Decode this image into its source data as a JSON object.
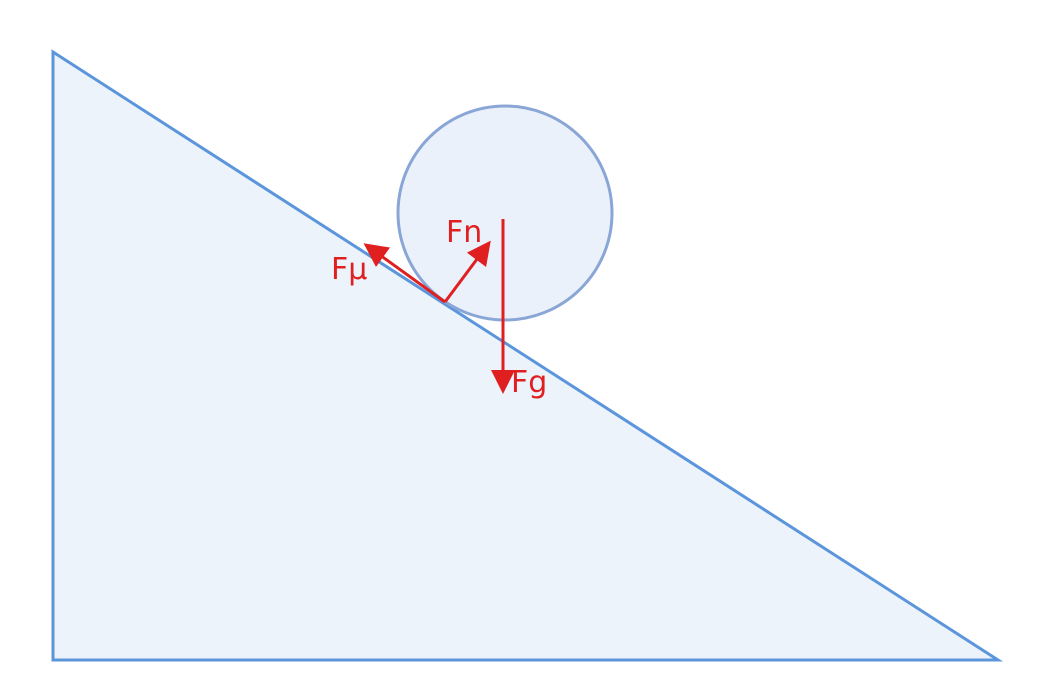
{
  "colors": {
    "incline_fill": "#edf3fb",
    "incline_stroke": "#5b95dc",
    "ball_fill": "#eaf1fa",
    "ball_stroke": "#8aa6d6",
    "force_color": "#e02020"
  },
  "forces": {
    "normal": {
      "label": "Fn"
    },
    "friction": {
      "label": "Fμ"
    },
    "gravity": {
      "label": "Fg"
    }
  }
}
